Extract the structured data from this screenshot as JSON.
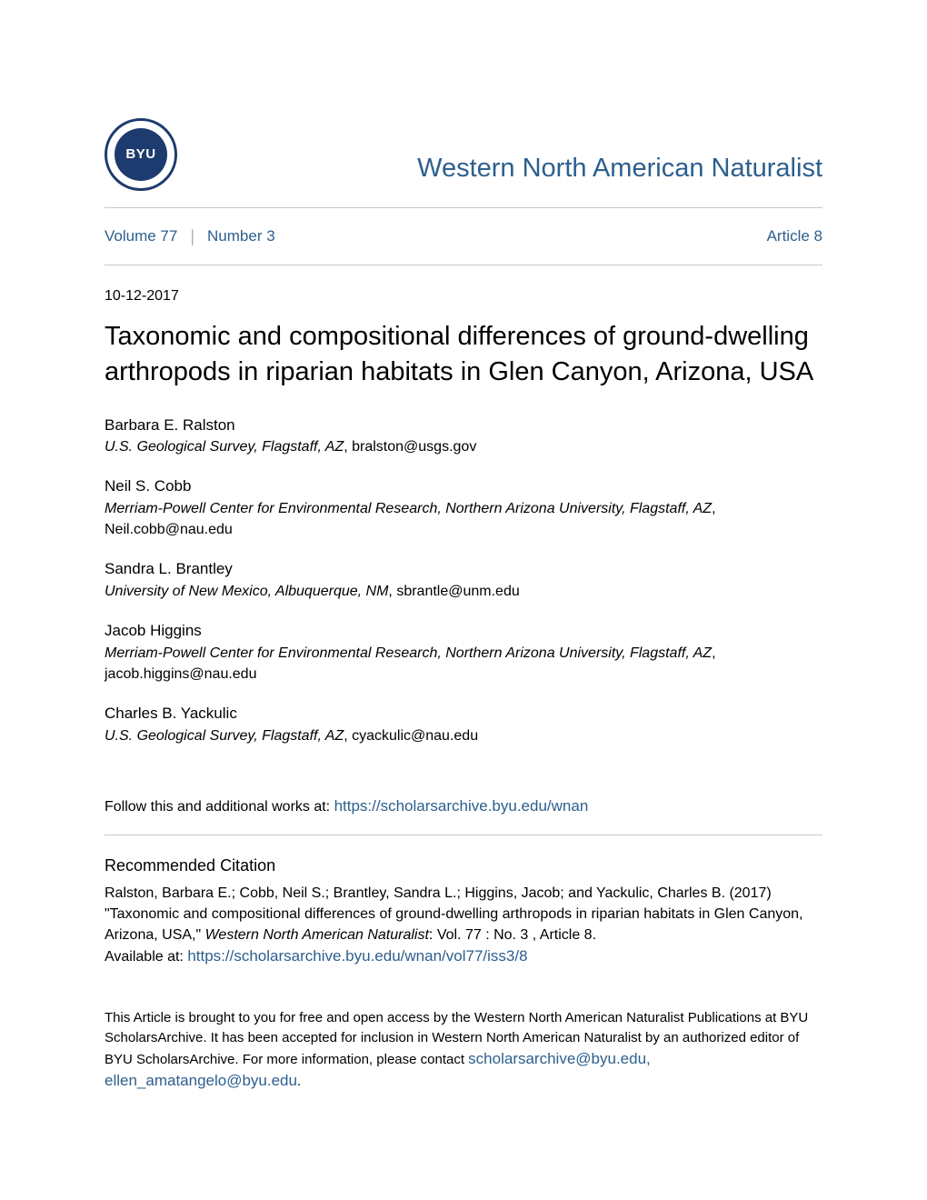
{
  "colors": {
    "link": "#2d5f8e",
    "text": "#000000",
    "rule": "#c8c8c8",
    "logo_bg": "#1d3b6e",
    "background": "#ffffff"
  },
  "logo": {
    "text": "BYU"
  },
  "journal": {
    "title": "Western North American Naturalist"
  },
  "nav": {
    "volume": "Volume 77",
    "number": "Number 3",
    "article": "Article 8"
  },
  "article": {
    "date": "10-12-2017",
    "title": "Taxonomic and compositional differences of ground-dwelling arthropods in riparian habitats in Glen Canyon, Arizona, USA"
  },
  "authors": [
    {
      "name": "Barbara E. Ralston",
      "affiliation": "U.S. Geological Survey, Flagstaff, AZ",
      "email": "bralston@usgs.gov"
    },
    {
      "name": "Neil S. Cobb",
      "affiliation": "Merriam-Powell Center for Environmental Research, Northern Arizona University, Flagstaff, AZ",
      "email": "Neil.cobb@nau.edu"
    },
    {
      "name": "Sandra L. Brantley",
      "affiliation": "University of New Mexico, Albuquerque, NM",
      "email": "sbrantle@unm.edu"
    },
    {
      "name": "Jacob Higgins",
      "affiliation": "Merriam-Powell Center for Environmental Research, Northern Arizona University, Flagstaff, AZ",
      "email": "jacob.higgins@nau.edu"
    },
    {
      "name": "Charles B. Yackulic",
      "affiliation": "U.S. Geological Survey, Flagstaff, AZ",
      "email": "cyackulic@nau.edu"
    }
  ],
  "follow": {
    "prefix": "Follow this and additional works at: ",
    "link": "https://scholarsarchive.byu.edu/wnan"
  },
  "citation": {
    "heading": "Recommended Citation",
    "text1": "Ralston, Barbara E.; Cobb, Neil S.; Brantley, Sandra L.; Higgins, Jacob; and Yackulic, Charles B. (2017) \"Taxonomic and compositional differences of ground-dwelling arthropods in riparian habitats in Glen Canyon, Arizona, USA,\" ",
    "journal_italic": "Western North American Naturalist",
    "text2": ": Vol. 77 : No. 3 , Article 8.",
    "available_label": "Available at: ",
    "available_link": "https://scholarsarchive.byu.edu/wnan/vol77/iss3/8"
  },
  "footer": {
    "text1": "This Article is brought to you for free and open access by the Western North American Naturalist Publications at BYU ScholarsArchive. It has been accepted for inclusion in Western North American Naturalist by an authorized editor of BYU ScholarsArchive. For more information, please contact ",
    "link": "scholarsarchive@byu.edu, ellen_amatangelo@byu.edu",
    "text2": "."
  }
}
